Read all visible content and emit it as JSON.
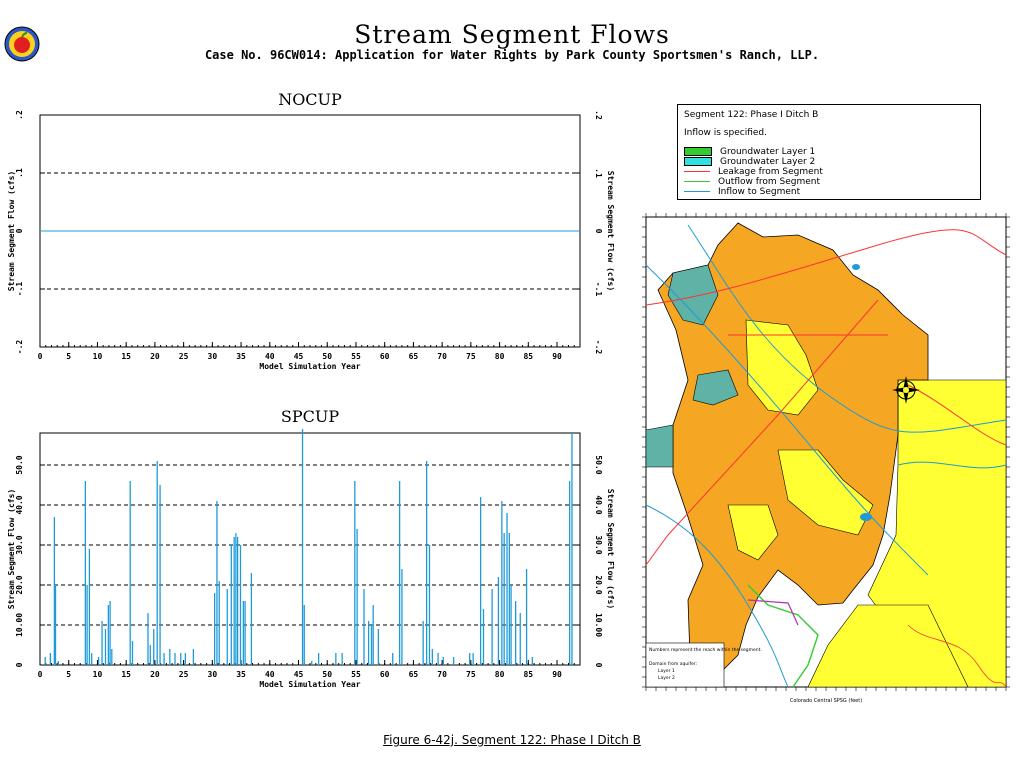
{
  "title": "Stream  Segment  Flows",
  "subtitle": "Case No. 96CW014: Application for Water Rights by Park County Sportsmen's Ranch, LLP.",
  "caption": "Figure 6-42j.  Segment 122: Phase I Ditch B",
  "colors": {
    "flow": "#1e9bd7",
    "gw1": "#33cc33",
    "gw2": "#33e0e0",
    "leak": "#ff3333",
    "out": "#33cc33",
    "in": "#1e9bd7",
    "map_orange": "#f5a623",
    "map_yellow": "#ffff33"
  },
  "legend": {
    "title": "Segment 122: Phase I Ditch B",
    "note": "Inflow is specified.",
    "items": [
      {
        "label": "Groundwater Layer 1",
        "kind": "swatch",
        "color": "#33cc33"
      },
      {
        "label": "Groundwater Layer 2",
        "kind": "swatch",
        "color": "#33e0e0"
      },
      {
        "label": "Leakage from Segment",
        "kind": "line",
        "color": "#ff3333"
      },
      {
        "label": "Outflow from Segment",
        "kind": "line",
        "color": "#33cc33"
      },
      {
        "label": "Inflow to Segment",
        "kind": "line",
        "color": "#1e9bd7"
      }
    ]
  },
  "map": {
    "notes": [
      "Numbers represent the reach within the segment.",
      "Domain from aquifer:",
      "Layer 1",
      "Layer 2"
    ],
    "xlabel": "Colorado Central SPSG (feet)",
    "icon": "compass-rose-icon"
  },
  "chart_data": [
    {
      "type": "line",
      "title": "NOCUP",
      "xlabel": "Model Simulation Year",
      "ylabel": "Stream Segment Flow (cfs)",
      "xlim": [
        0,
        94
      ],
      "ylim": [
        -0.2,
        0.2
      ],
      "xticks": [
        "0",
        "5",
        "10",
        "15",
        "20",
        "25",
        "30",
        "35",
        "40",
        "45",
        "50",
        "55",
        "60",
        "65",
        "70",
        "75",
        "80",
        "85",
        "90"
      ],
      "yticks": [
        ".2",
        ".1",
        "0",
        "-.1",
        "-.2"
      ],
      "gridlines": [
        0.1,
        0,
        -0.1
      ],
      "series": [
        {
          "values": [
            [
              0,
              0
            ],
            [
              94,
              0
            ]
          ]
        }
      ]
    },
    {
      "type": "bar",
      "title": "SPCUP",
      "xlabel": "Model Simulation Year",
      "ylabel": "Stream Segment Flow (cfs)",
      "xlim": [
        0,
        94
      ],
      "ylim": [
        0,
        58
      ],
      "xticks": [
        "0",
        "5",
        "10",
        "15",
        "20",
        "25",
        "30",
        "35",
        "40",
        "45",
        "50",
        "55",
        "60",
        "65",
        "70",
        "75",
        "80",
        "85",
        "90"
      ],
      "yticks": [
        "50.0",
        "40.0",
        "30.0",
        "20.0",
        "10.00",
        "0"
      ],
      "ytick_values": [
        50,
        40,
        30,
        20,
        10,
        0
      ],
      "series": [
        {
          "values": [
            [
              0.9,
              2
            ],
            [
              1.8,
              3
            ],
            [
              2.5,
              37
            ],
            [
              2.7,
              20
            ],
            [
              3.2,
              1
            ],
            [
              7.9,
              46
            ],
            [
              8.2,
              20
            ],
            [
              8.6,
              29
            ],
            [
              9.0,
              3
            ],
            [
              10.2,
              2
            ],
            [
              10.8,
              11
            ],
            [
              11.4,
              9
            ],
            [
              11.9,
              15
            ],
            [
              12.2,
              16
            ],
            [
              12.5,
              4
            ],
            [
              15.7,
              46
            ],
            [
              16.1,
              6
            ],
            [
              18.8,
              13
            ],
            [
              19.2,
              5
            ],
            [
              19.8,
              9
            ],
            [
              20.4,
              51
            ],
            [
              20.9,
              45
            ],
            [
              21.6,
              3
            ],
            [
              22.6,
              4
            ],
            [
              23.5,
              3
            ],
            [
              24.5,
              3
            ],
            [
              25.3,
              3
            ],
            [
              26.7,
              4
            ],
            [
              30.4,
              18
            ],
            [
              30.8,
              41
            ],
            [
              31.2,
              21
            ],
            [
              32.6,
              19
            ],
            [
              33.3,
              30
            ],
            [
              33.8,
              32
            ],
            [
              34.1,
              33
            ],
            [
              34.4,
              32
            ],
            [
              34.9,
              30
            ],
            [
              35.4,
              16
            ],
            [
              35.7,
              16
            ],
            [
              36.8,
              23
            ],
            [
              45.7,
              59
            ],
            [
              46.0,
              15
            ],
            [
              47.3,
              1
            ],
            [
              48.5,
              3
            ],
            [
              51.5,
              3
            ],
            [
              52.6,
              3
            ],
            [
              54.8,
              46
            ],
            [
              55.2,
              34
            ],
            [
              56.4,
              19
            ],
            [
              57.2,
              11
            ],
            [
              57.7,
              10
            ],
            [
              58.0,
              15
            ],
            [
              58.9,
              9
            ],
            [
              61.4,
              3
            ],
            [
              62.6,
              46
            ],
            [
              63.0,
              24
            ],
            [
              66.7,
              11
            ],
            [
              67.3,
              51
            ],
            [
              67.8,
              30
            ],
            [
              68.3,
              4
            ],
            [
              69.3,
              3
            ],
            [
              70.2,
              2
            ],
            [
              72.0,
              2
            ],
            [
              74.8,
              3
            ],
            [
              75.4,
              3
            ],
            [
              76.7,
              42
            ],
            [
              77.2,
              14
            ],
            [
              78.7,
              19
            ],
            [
              79.8,
              22
            ],
            [
              80.4,
              41
            ],
            [
              80.8,
              33
            ],
            [
              81.3,
              38
            ],
            [
              81.7,
              33
            ],
            [
              82.0,
              20
            ],
            [
              82.8,
              16
            ],
            [
              83.6,
              13
            ],
            [
              84.7,
              24
            ],
            [
              85.7,
              2
            ],
            [
              92.2,
              46
            ],
            [
              92.6,
              58
            ]
          ]
        }
      ]
    }
  ]
}
